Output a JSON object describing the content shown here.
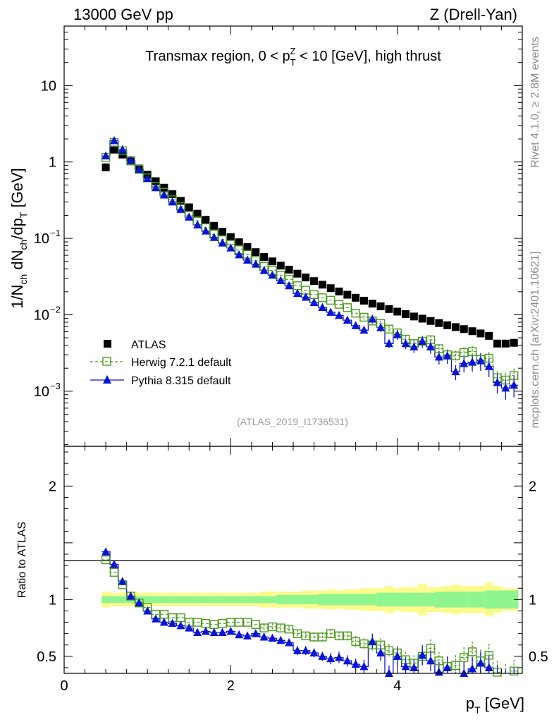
{
  "header": {
    "left": "13000 GeV pp",
    "right": "Z (Drell-Yan)"
  },
  "side_labels": {
    "rivet": "Rivet 4.1.0, ≥ 2.8M events",
    "mcplots": "mcplots.cern.ch [arXiv:2401.10621]"
  },
  "chart_data": [
    {
      "type": "scatter",
      "panel": "main",
      "title": "Transmax region, 0 < pTZ < 10 [GeV], high thrust",
      "title_parts": {
        "pre": "Transmax region, 0 < p",
        "sup": "Z",
        "sub": "T",
        "post": " < 10 [GeV], high thrust"
      },
      "ylabel": "1/Nch dNch/dpT [GeV]",
      "ylabel_parts": {
        "a": "1/N",
        "a_sub": "ch",
        "b": " dN",
        "b_sub": "ch",
        "c": "/dp",
        "c_sub": "T",
        "d": " [GeV]"
      },
      "yscale": "log",
      "ylim": [
        0.00019,
        60
      ],
      "xlim": [
        0,
        5.5
      ],
      "yticks": [
        {
          "value": 10,
          "label": "10"
        },
        {
          "value": 1,
          "label": "1"
        },
        {
          "value": 0.1,
          "label": "10",
          "exp": "−1"
        },
        {
          "value": 0.01,
          "label": "10",
          "exp": "−2"
        },
        {
          "value": 0.001,
          "label": "10",
          "exp": "−3"
        }
      ],
      "legend": [
        {
          "key": "atlas",
          "label": "ATLAS"
        },
        {
          "key": "herwig",
          "label": "Herwig 7.2.1 default"
        },
        {
          "key": "pythia",
          "label": "Pythia 8.315 default"
        }
      ],
      "watermark": "(ATLAS_2019_I1736531)",
      "x": [
        0.5,
        0.6,
        0.7,
        0.8,
        0.9,
        1.0,
        1.1,
        1.2,
        1.3,
        1.4,
        1.5,
        1.6,
        1.7,
        1.8,
        1.9,
        2.0,
        2.1,
        2.2,
        2.3,
        2.4,
        2.5,
        2.6,
        2.7,
        2.8,
        2.9,
        3.0,
        3.1,
        3.2,
        3.3,
        3.4,
        3.5,
        3.6,
        3.7,
        3.8,
        3.9,
        4.0,
        4.1,
        4.2,
        4.3,
        4.4,
        4.5,
        4.6,
        4.7,
        4.8,
        4.9,
        5.0,
        5.1,
        5.2,
        5.3,
        5.4
      ],
      "series": [
        {
          "name": "ATLAS",
          "key": "atlas",
          "color": "#000000",
          "values": [
            0.85,
            1.45,
            1.25,
            1.02,
            0.82,
            0.68,
            0.56,
            0.46,
            0.38,
            0.31,
            0.255,
            0.21,
            0.175,
            0.146,
            0.122,
            0.104,
            0.089,
            0.077,
            0.066,
            0.057,
            0.05,
            0.044,
            0.039,
            0.0345,
            0.0308,
            0.0276,
            0.0248,
            0.0223,
            0.0202,
            0.0183,
            0.0167,
            0.0153,
            0.014,
            0.0129,
            0.0119,
            0.011,
            0.0102,
            0.0095,
            0.0089,
            0.0083,
            0.0078,
            0.0073,
            0.0069,
            0.0065,
            0.0061,
            0.0057,
            0.0053,
            0.0042,
            0.0042,
            0.0043
          ]
        },
        {
          "name": "Herwig 7.2.1 default",
          "key": "herwig",
          "color": "#4c9a1e",
          "values": [
            1.15,
            1.8,
            1.4,
            1.04,
            0.8,
            0.62,
            0.48,
            0.4,
            0.32,
            0.26,
            0.2,
            0.17,
            0.138,
            0.113,
            0.096,
            0.084,
            0.071,
            0.062,
            0.051,
            0.043,
            0.038,
            0.033,
            0.029,
            0.024,
            0.021,
            0.0184,
            0.0167,
            0.0155,
            0.0137,
            0.0124,
            0.0105,
            0.0093,
            0.0083,
            0.0077,
            0.0065,
            0.0058,
            0.0048,
            0.0042,
            0.0045,
            0.0047,
            0.0036,
            0.003,
            0.0029,
            0.0032,
            0.0033,
            0.0026,
            0.0027,
            0.0015,
            0.0014,
            0.0016
          ]
        },
        {
          "name": "Pythia 8.315 default",
          "key": "pythia",
          "color": "#0a14d4",
          "values": [
            1.2,
            1.9,
            1.45,
            1.05,
            0.8,
            0.61,
            0.46,
            0.37,
            0.3,
            0.24,
            0.19,
            0.15,
            0.125,
            0.103,
            0.087,
            0.075,
            0.061,
            0.052,
            0.046,
            0.038,
            0.033,
            0.028,
            0.024,
            0.019,
            0.017,
            0.0145,
            0.0125,
            0.0108,
            0.0098,
            0.0085,
            0.0072,
            0.0063,
            0.0088,
            0.0068,
            0.0042,
            0.0055,
            0.0042,
            0.0038,
            0.0045,
            0.0038,
            0.0028,
            0.0029,
            0.0018,
            0.0023,
            0.0024,
            0.0025,
            0.0021,
            0.0013,
            0.0011,
            0.0012
          ]
        }
      ]
    },
    {
      "type": "scatter",
      "panel": "ratio",
      "ylabel": "Ratio to ATLAS",
      "xlabel": "pT [GeV]",
      "xlabel_parts": {
        "a": "p",
        "sub": "T",
        "b": " [GeV]"
      },
      "ylim": [
        0.35,
        2.35
      ],
      "xlim": [
        0,
        5.5
      ],
      "yticks": [
        {
          "value": 0.5,
          "label": "0.5"
        },
        {
          "value": 1,
          "label": "1"
        },
        {
          "value": 2,
          "label": "2"
        }
      ],
      "xticks": [
        {
          "value": 0,
          "label": "0"
        },
        {
          "value": 2,
          "label": "2"
        },
        {
          "value": 4,
          "label": "4"
        }
      ],
      "band_inner": [
        0.03,
        0.03,
        0.03,
        0.03,
        0.03,
        0.03,
        0.03,
        0.03,
        0.03,
        0.03,
        0.03,
        0.03,
        0.03,
        0.03,
        0.03,
        0.03,
        0.03,
        0.03,
        0.03,
        0.03,
        0.03,
        0.04,
        0.04,
        0.04,
        0.04,
        0.04,
        0.05,
        0.05,
        0.05,
        0.05,
        0.05,
        0.05,
        0.05,
        0.06,
        0.06,
        0.06,
        0.06,
        0.06,
        0.06,
        0.06,
        0.07,
        0.07,
        0.07,
        0.07,
        0.07,
        0.07,
        0.08,
        0.08,
        0.08,
        0.08
      ],
      "band_outer": [
        0.07,
        0.06,
        0.06,
        0.06,
        0.06,
        0.06,
        0.06,
        0.06,
        0.06,
        0.06,
        0.06,
        0.06,
        0.06,
        0.06,
        0.06,
        0.06,
        0.06,
        0.06,
        0.06,
        0.07,
        0.07,
        0.07,
        0.07,
        0.07,
        0.08,
        0.08,
        0.08,
        0.09,
        0.08,
        0.09,
        0.09,
        0.1,
        0.1,
        0.1,
        0.12,
        0.1,
        0.11,
        0.11,
        0.14,
        0.11,
        0.11,
        0.12,
        0.13,
        0.12,
        0.12,
        0.12,
        0.15,
        0.12,
        0.1,
        0.1
      ],
      "series": [
        {
          "name": "Herwig 7.2.1 default",
          "key": "herwig",
          "values": [
            1.35,
            1.24,
            1.13,
            1.03,
            0.97,
            0.93,
            0.87,
            0.87,
            0.84,
            0.84,
            0.8,
            0.8,
            0.79,
            0.78,
            0.79,
            0.8,
            0.8,
            0.8,
            0.78,
            0.75,
            0.76,
            0.75,
            0.74,
            0.7,
            0.68,
            0.67,
            0.67,
            0.7,
            0.68,
            0.68,
            0.63,
            0.61,
            0.6,
            0.6,
            0.55,
            0.53,
            0.47,
            0.44,
            0.5,
            0.57,
            0.46,
            0.41,
            0.42,
            0.49,
            0.54,
            0.46,
            0.51,
            0.36,
            0.33,
            0.37
          ],
          "errors": [
            0.02,
            0.02,
            0.02,
            0.02,
            0.02,
            0.02,
            0.02,
            0.02,
            0.02,
            0.02,
            0.02,
            0.02,
            0.02,
            0.02,
            0.02,
            0.02,
            0.02,
            0.02,
            0.02,
            0.03,
            0.03,
            0.03,
            0.03,
            0.03,
            0.03,
            0.04,
            0.04,
            0.04,
            0.04,
            0.04,
            0.05,
            0.05,
            0.05,
            0.06,
            0.06,
            0.06,
            0.07,
            0.07,
            0.07,
            0.08,
            0.08,
            0.08,
            0.09,
            0.09,
            0.09,
            0.1,
            0.1,
            0.1,
            0.1,
            0.1
          ]
        },
        {
          "name": "Pythia 8.315 default",
          "key": "pythia",
          "values": [
            1.42,
            1.31,
            1.16,
            1.03,
            0.97,
            0.9,
            0.83,
            0.8,
            0.79,
            0.77,
            0.75,
            0.71,
            0.72,
            0.71,
            0.71,
            0.72,
            0.69,
            0.68,
            0.7,
            0.67,
            0.66,
            0.64,
            0.62,
            0.55,
            0.55,
            0.53,
            0.5,
            0.48,
            0.49,
            0.46,
            0.43,
            0.41,
            0.63,
            0.53,
            0.35,
            0.5,
            0.41,
            0.4,
            0.51,
            0.46,
            0.36,
            0.4,
            0.26,
            0.35,
            0.39,
            0.44,
            0.4,
            0.31,
            0.26,
            0.28
          ],
          "errors": [
            0.02,
            0.02,
            0.02,
            0.02,
            0.02,
            0.02,
            0.02,
            0.02,
            0.02,
            0.02,
            0.02,
            0.02,
            0.02,
            0.02,
            0.02,
            0.02,
            0.02,
            0.02,
            0.02,
            0.03,
            0.03,
            0.03,
            0.03,
            0.04,
            0.04,
            0.04,
            0.04,
            0.05,
            0.05,
            0.05,
            0.05,
            0.06,
            0.07,
            0.07,
            0.07,
            0.08,
            0.08,
            0.08,
            0.09,
            0.09,
            0.09,
            0.1,
            0.1,
            0.1,
            0.1,
            0.1,
            0.11,
            0.11,
            0.12,
            0.12
          ]
        }
      ]
    }
  ],
  "colors": {
    "atlas": "#000000",
    "herwig": "#4c9a1e",
    "pythia": "#0a14d4",
    "band_inner": "#8ff58f",
    "band_outer": "#fbfb8d",
    "side_text": "#8a8a8a"
  }
}
